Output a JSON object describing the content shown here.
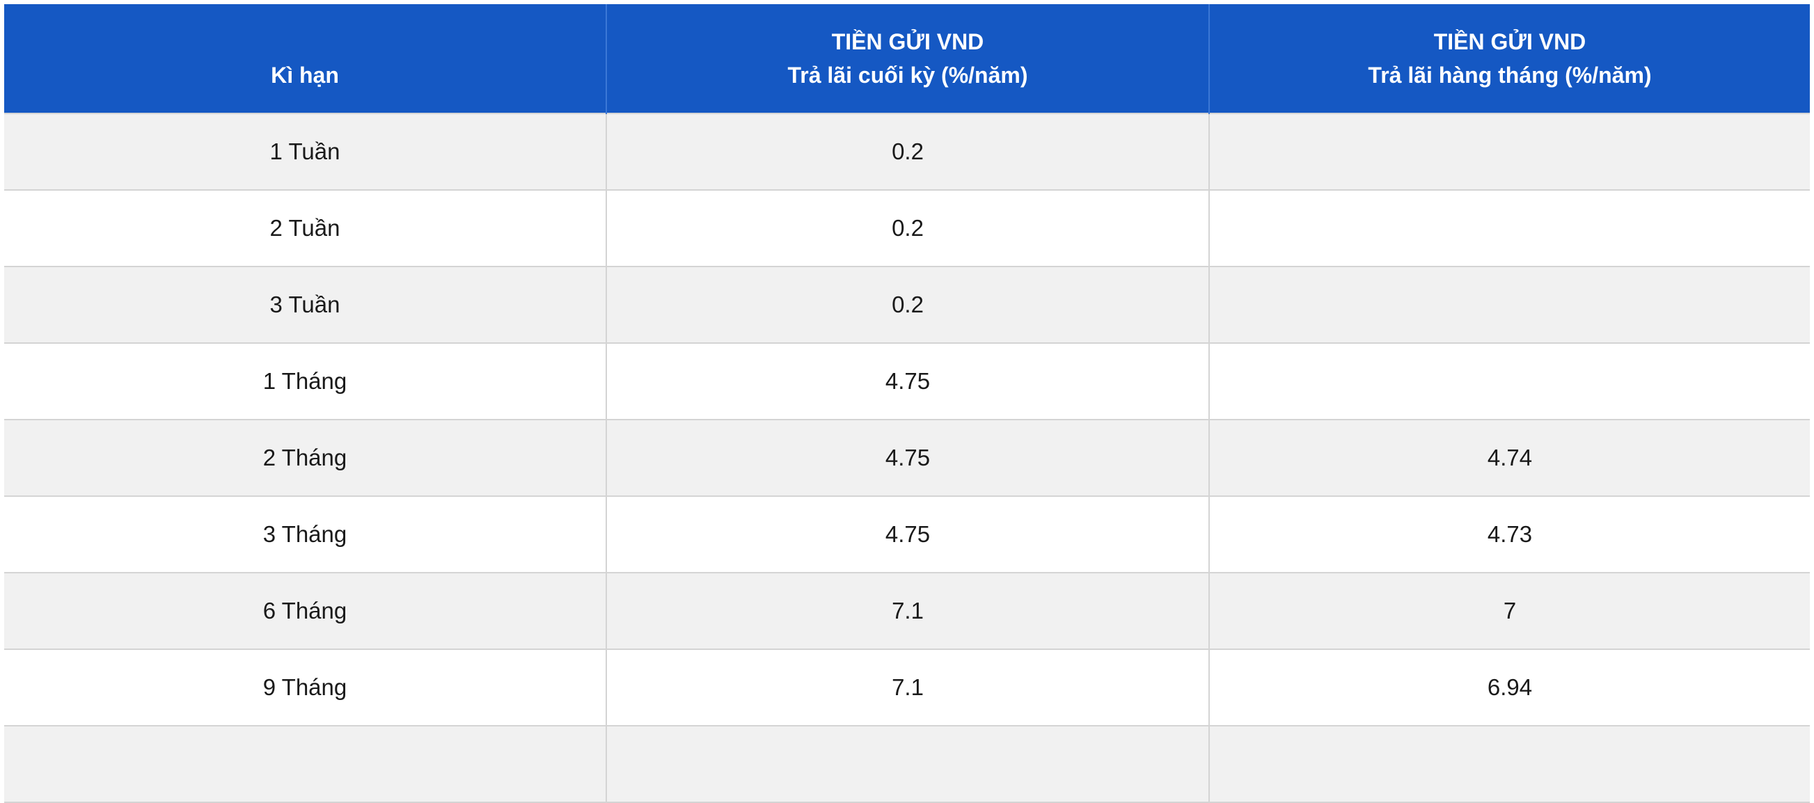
{
  "table": {
    "headers": {
      "term": "Kì hạn",
      "col2_line1": "TIỀN GỬI VND",
      "col2_line2": "Trả lãi cuối kỳ (%/năm)",
      "col3_line1": "TIỀN GỬI VND",
      "col3_line2": "Trả lãi hàng tháng (%/năm)"
    },
    "rows": [
      {
        "term": "1 Tuần",
        "end_of_term": "0.2",
        "monthly": ""
      },
      {
        "term": "2 Tuần",
        "end_of_term": "0.2",
        "monthly": ""
      },
      {
        "term": "3 Tuần",
        "end_of_term": "0.2",
        "monthly": ""
      },
      {
        "term": "1 Tháng",
        "end_of_term": "4.75",
        "monthly": ""
      },
      {
        "term": "2 Tháng",
        "end_of_term": "4.75",
        "monthly": "4.74"
      },
      {
        "term": "3 Tháng",
        "end_of_term": "4.75",
        "monthly": "4.73"
      },
      {
        "term": "6 Tháng",
        "end_of_term": "7.1",
        "monthly": "7"
      },
      {
        "term": "9 Tháng",
        "end_of_term": "7.1",
        "monthly": "6.94"
      }
    ]
  },
  "colors": {
    "header_bg": "#1558c3",
    "header_text": "#ffffff",
    "row_odd_bg": "#f1f1f1",
    "row_even_bg": "#ffffff",
    "border": "#d4d4d4"
  }
}
